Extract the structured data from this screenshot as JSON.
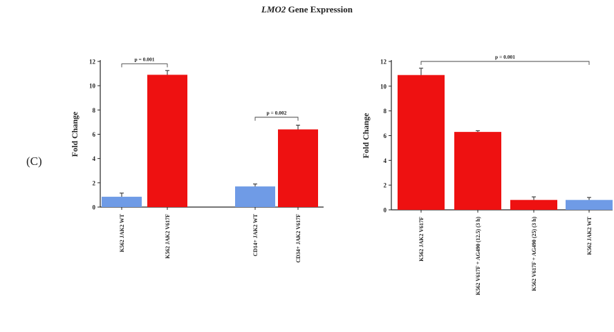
{
  "figure": {
    "title_italic": "LMO2",
    "title_rest": " Gene Expression",
    "panel_label": "(C)"
  },
  "chart_data": [
    {
      "type": "bar",
      "title": "",
      "xlabel": "",
      "ylabel": "Fold Change",
      "ylim": [
        0,
        12
      ],
      "yticks": [
        0,
        2,
        4,
        6,
        8,
        10,
        12
      ],
      "grid": false,
      "categories": [
        "K562 JAK2 WT",
        "K562 JAK2 V617F",
        "CD14+ JAK2 WT",
        "CD34+ JAK2 V617F"
      ],
      "values": [
        0.85,
        10.9,
        1.7,
        6.4
      ],
      "errors": [
        0.3,
        0.35,
        0.2,
        0.35
      ],
      "colors": [
        "#6f9be6",
        "#ee1111",
        "#6f9be6",
        "#ee1111"
      ],
      "annotations": [
        {
          "text": "p = 0.001",
          "from": 0,
          "to": 1,
          "y": 11.8
        },
        {
          "text": "p = 0.002",
          "from": 2,
          "to": 3,
          "y": 7.4
        }
      ]
    },
    {
      "type": "bar",
      "title": "",
      "xlabel": "",
      "ylabel": "Fold Change",
      "ylim": [
        0,
        12
      ],
      "yticks": [
        0,
        2,
        4,
        6,
        8,
        10,
        12
      ],
      "grid": false,
      "categories": [
        "K562 JAK2 V617F",
        "K562 V617F + AG490 (12.5) (3 h)",
        "K562 V617F + AG490 (25) (3 h)",
        "K562 JAK2 WT"
      ],
      "values": [
        10.9,
        6.3,
        0.8,
        0.8
      ],
      "errors": [
        0.55,
        0.1,
        0.25,
        0.2
      ],
      "colors": [
        "#ee1111",
        "#ee1111",
        "#ee1111",
        "#6f9be6"
      ],
      "annotations": [
        {
          "text": "p = 0.001",
          "from": 0,
          "to": 3,
          "y": 12
        }
      ]
    }
  ]
}
